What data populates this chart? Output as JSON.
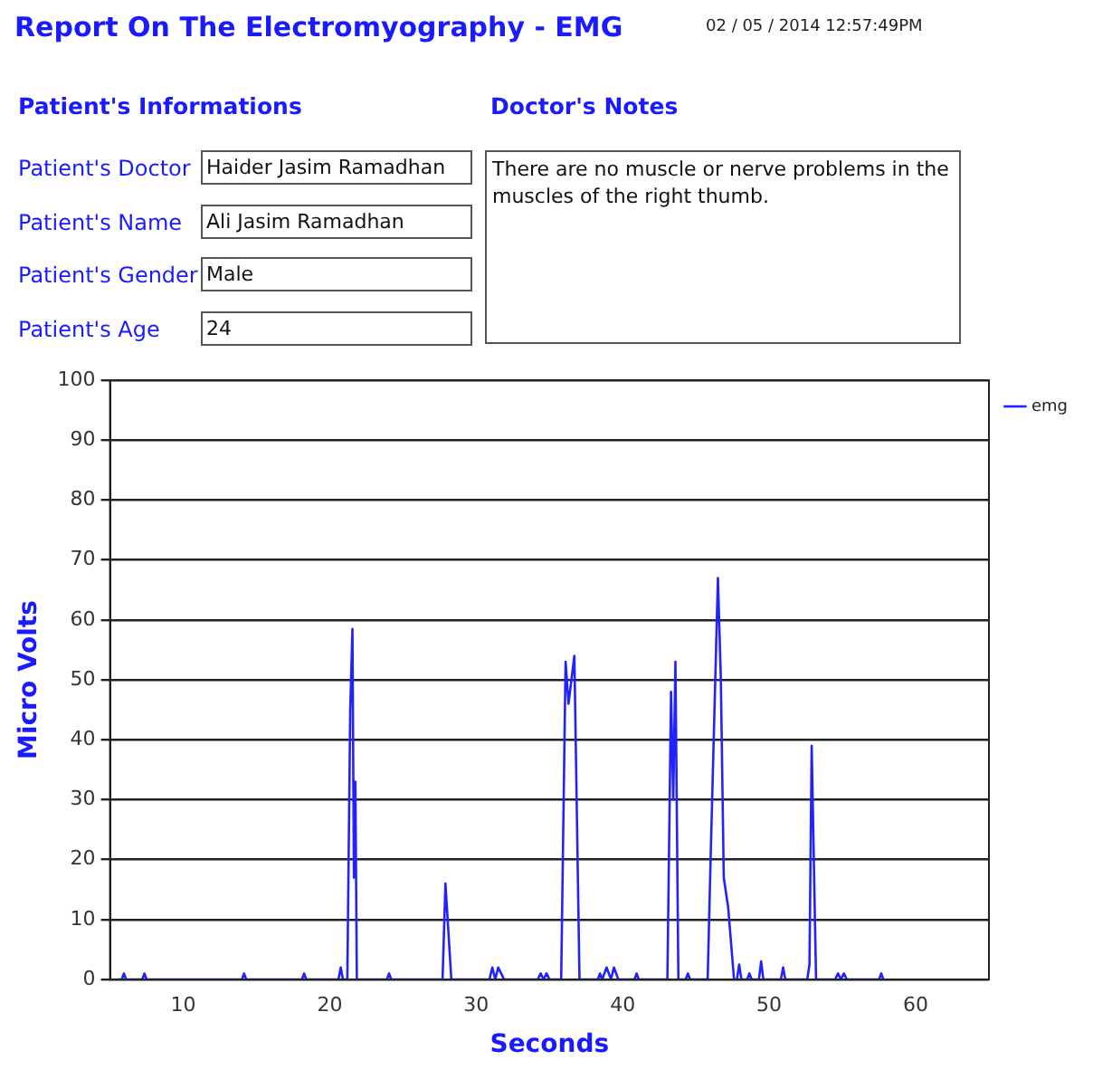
{
  "chart_data": [
    {
      "type": "other",
      "title": "Report On The Electromyography - EMG",
      "annotations": [
        "02 / 05 / 2014 12:57:49PM",
        "Patient's Informations",
        "Doctor's Notes",
        "Patient's Doctor",
        "Haider Jasim Ramadhan",
        "Patient's Name",
        "Ali Jasim Ramadhan",
        "Patient's Gender",
        "Male",
        "Patient's Age",
        "24",
        "There are no muscle or nerve problems in the muscles of the right thumb."
      ]
    },
    {
      "type": "line",
      "xlabel": "Seconds",
      "ylabel": "Micro Volts",
      "xlim": [
        5,
        65
      ],
      "xticks": [
        10,
        20,
        30,
        40,
        50,
        60
      ],
      "ylim": [
        0,
        100
      ],
      "yticks": [
        0,
        10,
        20,
        30,
        40,
        50,
        60,
        70,
        80,
        90,
        100
      ],
      "grid": "y",
      "legend": "top right",
      "marker": "none",
      "line_style": "solid",
      "series": [
        {
          "name": "emg",
          "color": "#2222ff",
          "x": [
            5.5,
            5.8,
            5.95,
            6.1,
            7.2,
            7.35,
            7.5,
            14,
            14.15,
            14.3,
            18.1,
            18.25,
            18.4,
            20.6,
            20.75,
            20.9,
            21.2,
            21.4,
            21.55,
            21.65,
            21.75,
            21.85,
            23.9,
            24.05,
            24.2,
            27.7,
            27.9,
            28.3,
            30.9,
            31.1,
            31.3,
            31.5,
            31.7,
            31.9,
            34.2,
            34.4,
            34.6,
            34.8,
            35,
            35.8,
            36.1,
            36.3,
            36.5,
            36.7,
            37.05,
            38.3,
            38.45,
            38.6,
            38.9,
            39.2,
            39.4,
            39.7,
            40.8,
            40.95,
            41.1,
            43.05,
            43.3,
            43.45,
            43.6,
            43.8,
            44.3,
            44.45,
            44.6,
            45.8,
            46.0,
            46.5,
            46.7,
            46.9,
            47.2,
            47.6,
            47.8,
            47.95,
            48.1,
            48.5,
            48.65,
            48.8,
            49.3,
            49.45,
            49.6,
            50.8,
            50.95,
            51.1,
            52.6,
            52.75,
            52.9,
            53.2,
            54.5,
            54.7,
            54.9,
            55.1,
            55.3,
            57.5,
            57.65,
            57.8
          ],
          "values": [
            0,
            0,
            1,
            0,
            0,
            1,
            0,
            0,
            1,
            0,
            0,
            1,
            0,
            0,
            2,
            0,
            0,
            45,
            58.5,
            17,
            33,
            0,
            0,
            1,
            0,
            0,
            16,
            0,
            0,
            2,
            0,
            2,
            1,
            0,
            0,
            1,
            0,
            1,
            0,
            0,
            53,
            46,
            50,
            54,
            0,
            0,
            1,
            0,
            2,
            0,
            2,
            0,
            0,
            1,
            0,
            0,
            48,
            30,
            53,
            0,
            0,
            1,
            0,
            0,
            20,
            67,
            50,
            17,
            12,
            0,
            0,
            2.5,
            0,
            0,
            1,
            0,
            0,
            3,
            0,
            0,
            2,
            0,
            0,
            2.5,
            39,
            0,
            0,
            1,
            0,
            1,
            0,
            0,
            1,
            0
          ]
        }
      ]
    }
  ]
}
